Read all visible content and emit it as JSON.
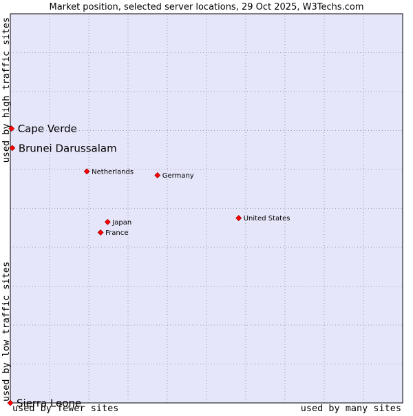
{
  "colors": {
    "plot_background": "#e6e6fa",
    "grid": "#9a9aa8",
    "marker": "#ff0000",
    "marker_outline": "#800000",
    "frame": "#000000"
  },
  "chart_data": {
    "type": "scatter",
    "title": "Market position, selected server locations, 29 Oct 2025, W3Techs.com",
    "xlabel_low": "used by fewer sites",
    "xlabel_high": "used by many sites",
    "ylabel_low": "used by low traffic sites",
    "ylabel_high": "used by high traffic sites",
    "xlim": [
      0,
      100
    ],
    "ylim": [
      0,
      100
    ],
    "grid": true,
    "grid_divisions": {
      "x": 10,
      "y": 10
    },
    "points": [
      {
        "name": "Cape Verde",
        "x": 0.3,
        "y": 70.5,
        "label_size": "large"
      },
      {
        "name": "Brunei Darussalam",
        "x": 0.5,
        "y": 65.5,
        "label_size": "large"
      },
      {
        "name": "Netherlands",
        "x": 19.5,
        "y": 59.5,
        "label_size": "small"
      },
      {
        "name": "Germany",
        "x": 37.5,
        "y": 58.5,
        "label_size": "small"
      },
      {
        "name": "United States",
        "x": 58.2,
        "y": 47.5,
        "label_size": "small"
      },
      {
        "name": "Japan",
        "x": 24.8,
        "y": 46.5,
        "label_size": "small"
      },
      {
        "name": "France",
        "x": 23.0,
        "y": 43.8,
        "label_size": "small"
      },
      {
        "name": "Sierra Leone",
        "x": 0.0,
        "y": 0.0,
        "label_size": "large"
      }
    ]
  }
}
